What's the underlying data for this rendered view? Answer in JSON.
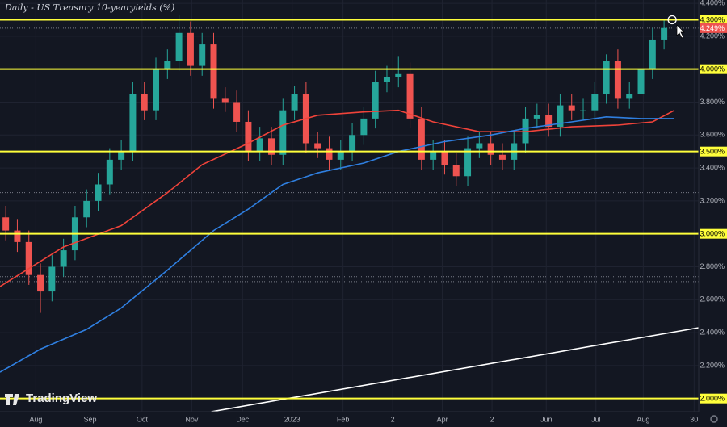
{
  "chart_data": {
    "type": "candlestick",
    "title": "Daily - US Treasury 10-yearyields (%)",
    "watermark": "TradingView",
    "xlim": [
      -0.5,
      60
    ],
    "ylim": [
      1.92,
      4.42
    ],
    "xticks": [
      {
        "value": 2.6,
        "label": "Aug"
      },
      {
        "value": 7.3,
        "label": "Sep"
      },
      {
        "value": 11.8,
        "label": "Oct"
      },
      {
        "value": 16.1,
        "label": "Nov"
      },
      {
        "value": 20.5,
        "label": "Dec"
      },
      {
        "value": 24.8,
        "label": "2023"
      },
      {
        "value": 29.2,
        "label": "Feb"
      },
      {
        "value": 33.5,
        "label": "2"
      },
      {
        "value": 37.8,
        "label": "Apr"
      },
      {
        "value": 42.1,
        "label": "2"
      },
      {
        "value": 46.8,
        "label": "Jun"
      },
      {
        "value": 51.1,
        "label": "Jul"
      },
      {
        "value": 55.2,
        "label": "Aug"
      },
      {
        "value": 59.6,
        "label": "30"
      }
    ],
    "yticks": [
      {
        "value": 4.4,
        "label": "4.400%"
      },
      {
        "value": 4.2,
        "label": "4.200%"
      },
      {
        "value": 3.8,
        "label": "3.800%"
      },
      {
        "value": 3.6,
        "label": "3.600%"
      },
      {
        "value": 3.4,
        "label": "3.400%"
      },
      {
        "value": 3.2,
        "label": "3.200%"
      },
      {
        "value": 2.8,
        "label": "2.800%"
      },
      {
        "value": 2.6,
        "label": "2.600%"
      },
      {
        "value": 2.4,
        "label": "2.400%"
      },
      {
        "value": 2.2,
        "label": "2.200%"
      }
    ],
    "grid": true,
    "levels": [
      {
        "value": 4.3,
        "label": "4.300%"
      },
      {
        "value": 4.0,
        "label": "4.000%"
      },
      {
        "value": 3.5,
        "label": "3.500%"
      },
      {
        "value": 3.0,
        "label": "3.000%"
      },
      {
        "value": 2.0,
        "label": "2.000%"
      }
    ],
    "level_color": "#ffff3b",
    "last_price": {
      "value": 4.249,
      "label": "4.249%"
    },
    "dotted_levels": [
      3.25,
      2.74,
      2.71
    ],
    "up_color": "#26a69a",
    "down_color": "#ef5350",
    "open": [
      3.1,
      3.02,
      2.95,
      2.75,
      2.65,
      2.8,
      2.9,
      3.1,
      3.2,
      3.3,
      3.45,
      3.5,
      3.85,
      3.75,
      4.0,
      4.05,
      4.22,
      4.02,
      4.15,
      3.82,
      3.8,
      3.68,
      3.5,
      3.58,
      3.48,
      3.75,
      3.85,
      3.55,
      3.52,
      3.45,
      3.5,
      3.6,
      3.7,
      3.92,
      3.95,
      3.97,
      3.7,
      3.45,
      3.5,
      3.42,
      3.35,
      3.52,
      3.55,
      3.48,
      3.45,
      3.55,
      3.7,
      3.72,
      3.65,
      3.78,
      3.75,
      3.75,
      3.85,
      4.05,
      3.82,
      3.85,
      4.0,
      4.18
    ],
    "high": [
      3.17,
      3.09,
      3.02,
      2.82,
      2.87,
      2.97,
      3.17,
      3.27,
      3.37,
      3.52,
      3.57,
      3.92,
      3.92,
      4.07,
      4.12,
      4.33,
      4.29,
      4.22,
      4.22,
      3.89,
      3.87,
      3.75,
      3.65,
      3.65,
      3.82,
      3.9,
      3.92,
      3.62,
      3.59,
      3.57,
      3.67,
      3.77,
      3.99,
      4.02,
      4.08,
      4.04,
      3.77,
      3.57,
      3.57,
      3.49,
      3.59,
      3.62,
      3.62,
      3.55,
      3.62,
      3.77,
      3.79,
      3.79,
      3.85,
      3.85,
      3.82,
      3.92,
      4.09,
      4.12,
      3.92,
      4.07,
      4.25,
      4.3
    ],
    "low": [
      2.96,
      2.89,
      2.69,
      2.52,
      2.59,
      2.74,
      2.84,
      3.04,
      3.14,
      3.24,
      3.39,
      3.44,
      3.69,
      3.69,
      3.94,
      3.99,
      3.96,
      3.96,
      3.76,
      3.74,
      3.62,
      3.44,
      3.44,
      3.42,
      3.42,
      3.69,
      3.49,
      3.46,
      3.39,
      3.39,
      3.44,
      3.54,
      3.64,
      3.86,
      3.89,
      3.64,
      3.39,
      3.39,
      3.36,
      3.29,
      3.29,
      3.46,
      3.42,
      3.39,
      3.39,
      3.49,
      3.64,
      3.59,
      3.59,
      3.69,
      3.69,
      3.69,
      3.79,
      3.76,
      3.76,
      3.79,
      3.94,
      4.12
    ],
    "close": [
      3.02,
      2.95,
      2.75,
      2.65,
      2.8,
      2.9,
      3.1,
      3.2,
      3.3,
      3.45,
      3.5,
      3.85,
      3.75,
      4.0,
      4.05,
      4.22,
      4.02,
      4.15,
      3.82,
      3.8,
      3.68,
      3.5,
      3.58,
      3.48,
      3.75,
      3.85,
      3.55,
      3.52,
      3.45,
      3.5,
      3.6,
      3.7,
      3.92,
      3.95,
      3.97,
      3.7,
      3.45,
      3.5,
      3.42,
      3.35,
      3.52,
      3.55,
      3.48,
      3.45,
      3.55,
      3.7,
      3.72,
      3.65,
      3.78,
      3.75,
      3.75,
      3.85,
      4.05,
      3.82,
      3.85,
      4.0,
      4.18,
      4.25
    ],
    "lines": [
      {
        "color": "#f0433a",
        "x": [
          -0.5,
          5,
          10,
          14,
          17,
          21,
          24,
          27,
          31,
          34,
          37,
          41,
          45,
          49,
          53,
          56,
          57.9
        ],
        "values": [
          2.68,
          2.92,
          3.05,
          3.25,
          3.42,
          3.55,
          3.66,
          3.72,
          3.74,
          3.75,
          3.68,
          3.62,
          3.62,
          3.65,
          3.66,
          3.68,
          3.75
        ]
      },
      {
        "color": "#2f7fe0",
        "x": [
          -0.5,
          3,
          7,
          10,
          14,
          18,
          21,
          24,
          27,
          31,
          34,
          38,
          42,
          45,
          49,
          52,
          55,
          57.9
        ],
        "values": [
          2.16,
          2.3,
          2.42,
          2.55,
          2.78,
          3.02,
          3.15,
          3.3,
          3.37,
          3.43,
          3.5,
          3.56,
          3.6,
          3.64,
          3.68,
          3.71,
          3.7,
          3.7
        ]
      },
      {
        "color": "#ffffff",
        "x": [
          17.8,
          60
        ],
        "values": [
          1.92,
          2.43
        ]
      }
    ]
  }
}
